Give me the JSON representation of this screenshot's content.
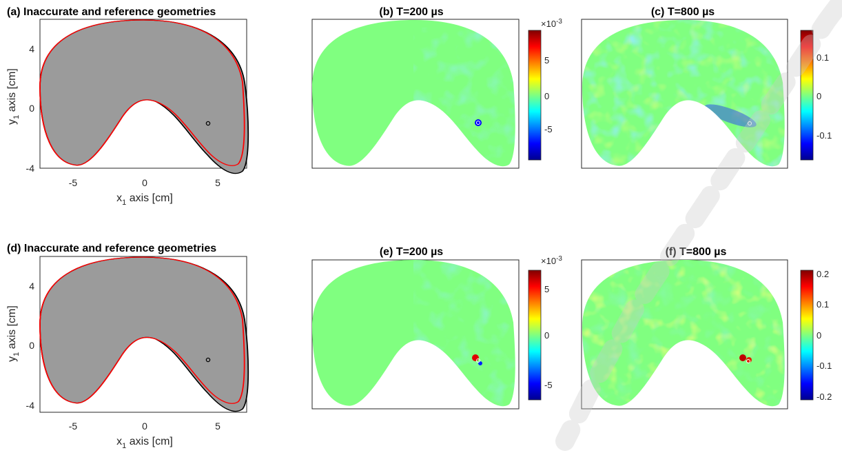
{
  "panels": [
    {
      "id": "a",
      "title": "(a) Inaccurate and reference geometries",
      "type": "geometry",
      "xticks": [
        "-5",
        "0",
        "5"
      ],
      "yticks": [
        "4",
        "0",
        "-4"
      ],
      "xlabel": "x",
      "xlabel_sub": "1",
      "xlabel_rest": " axis [cm]",
      "ylabel": "y",
      "ylabel_sub": "1",
      "ylabel_rest": " axis [cm]"
    },
    {
      "id": "b",
      "title": "(b) T=200 µs",
      "type": "field",
      "colorbar_multiplier": "×10",
      "colorbar_exp": "-3",
      "colorbar_ticks": [
        "5",
        "0",
        "-5"
      ]
    },
    {
      "id": "c",
      "title": "(c) T=800 µs",
      "type": "field",
      "colorbar_ticks": [
        "0.1",
        "0",
        "-0.1"
      ]
    },
    {
      "id": "d",
      "title": "(d) Inaccurate and reference geometries",
      "type": "geometry",
      "xticks": [
        "-5",
        "0",
        "5"
      ],
      "yticks": [
        "4",
        "0",
        "-4"
      ],
      "xlabel": "x",
      "xlabel_sub": "1",
      "xlabel_rest": " axis [cm]",
      "ylabel": "y",
      "ylabel_sub": "1",
      "ylabel_rest": " axis [cm]"
    },
    {
      "id": "e",
      "title": "(e) T=200 µs",
      "type": "field",
      "colorbar_multiplier": "×10",
      "colorbar_exp": "-3",
      "colorbar_ticks": [
        "5",
        "0",
        "-5"
      ]
    },
    {
      "id": "f",
      "title": "(f) T=800 µs",
      "type": "field",
      "colorbar_ticks": [
        "0.2",
        "0.1",
        "0",
        "-0.1",
        "-0.2"
      ]
    }
  ],
  "colors": {
    "reference_outline": "#ff0000",
    "inaccurate_outline": "#000000",
    "domain_fill": "#9b9b9b",
    "field_background": "#80ff80",
    "watermark": "#c8c8c8"
  }
}
